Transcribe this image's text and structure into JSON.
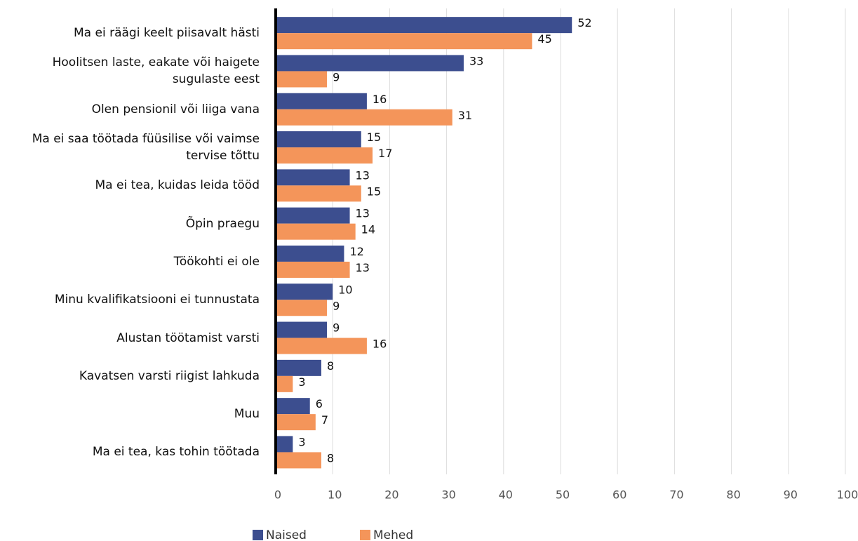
{
  "chart_data": {
    "type": "bar",
    "orientation": "horizontal",
    "categories": [
      "Ma ei räägi keelt piisavalt hästi",
      "Hoolitsen laste, eakate või haigete\nsugulaste eest",
      "Olen pensionil või liiga vana",
      "Ma ei saa töötada füüsilise või vaimse\ntervise tõttu",
      "Ma ei tea, kuidas leida tööd",
      "Õpin praegu",
      "Töökohti ei ole",
      "Minu kvalifikatsiooni ei tunnustata",
      "Alustan töötamist varsti",
      "Kavatsen varsti riigist lahkuda",
      "Muu",
      "Ma ei tea, kas tohin töötada"
    ],
    "series": [
      {
        "name": "Naised",
        "color": "#3c4e8f",
        "values": [
          52,
          33,
          16,
          15,
          13,
          13,
          12,
          10,
          9,
          8,
          6,
          3
        ]
      },
      {
        "name": "Mehed",
        "color": "#f4955a",
        "values": [
          45,
          9,
          31,
          17,
          15,
          14,
          13,
          9,
          16,
          3,
          7,
          8
        ]
      }
    ],
    "xlim": [
      0,
      100
    ],
    "xticks": [
      0,
      10,
      20,
      30,
      40,
      50,
      60,
      70,
      80,
      90,
      100
    ],
    "grid": true,
    "legend": "bottom"
  }
}
